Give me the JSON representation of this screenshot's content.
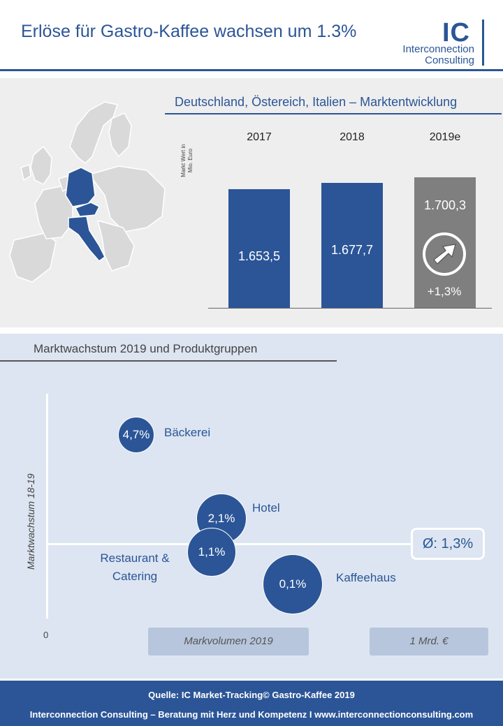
{
  "header": {
    "title": "Erlöse für Gastro-Kaffee wachsen um 1.3%",
    "logo_mark": "IC",
    "logo_line1": "Interconnection",
    "logo_line2": "Consulting"
  },
  "colors": {
    "brand": "#2b5597",
    "forecast": "#7f7f7f",
    "panel_top": "#eeeeee",
    "panel_bottom": "#dce5f1"
  },
  "map": {
    "icon": "europe-map-icon",
    "highlighted_countries": [
      "Deutschland",
      "Österreich",
      "Italien"
    ]
  },
  "chart_data": [
    {
      "type": "bar",
      "title": "Deutschland, Östereich, Italien – Marktentwicklung",
      "ylabel": "Markt Wert in Mio. Euro",
      "categories": [
        "2017",
        "2018",
        "2019e"
      ],
      "values": [
        1653.5,
        1677.7,
        1700.3
      ],
      "value_labels": [
        "1.653,5",
        "1.677,7",
        "1.700,3"
      ],
      "forecast_index": 2,
      "forecast_growth_label": "+1,3%",
      "forecast_icon": "arrow-up-right-icon",
      "ylim": [
        0,
        1700.3
      ]
    },
    {
      "type": "scatter",
      "title": "Marktwachstum 2019 und Produktgruppen",
      "xlabel": "Markvolumen 2019",
      "ylabel": "Marktwachstum 18-19",
      "x_origin_label": "0",
      "scale_label": "1 Mrd. €",
      "average_label": "Ø: 1,3%",
      "average_growth": 1.3,
      "points": [
        {
          "name": "Bäckerei",
          "growth": 4.7,
          "label": "4,7%"
        },
        {
          "name": "Hotel",
          "growth": 2.1,
          "label": "2,1%"
        },
        {
          "name": "Restaurant & Catering",
          "growth": 1.1,
          "label": "1,1%"
        },
        {
          "name": "Kaffeehaus",
          "growth": 0.1,
          "label": "0,1%"
        }
      ]
    }
  ],
  "footer": {
    "source": "Quelle: IC Market-Tracking© Gastro-Kaffee 2019",
    "tagline": "Interconnection Consulting – Beratung mit Herz und Kompetenz  I  www.interconnectionconsulting.com"
  }
}
